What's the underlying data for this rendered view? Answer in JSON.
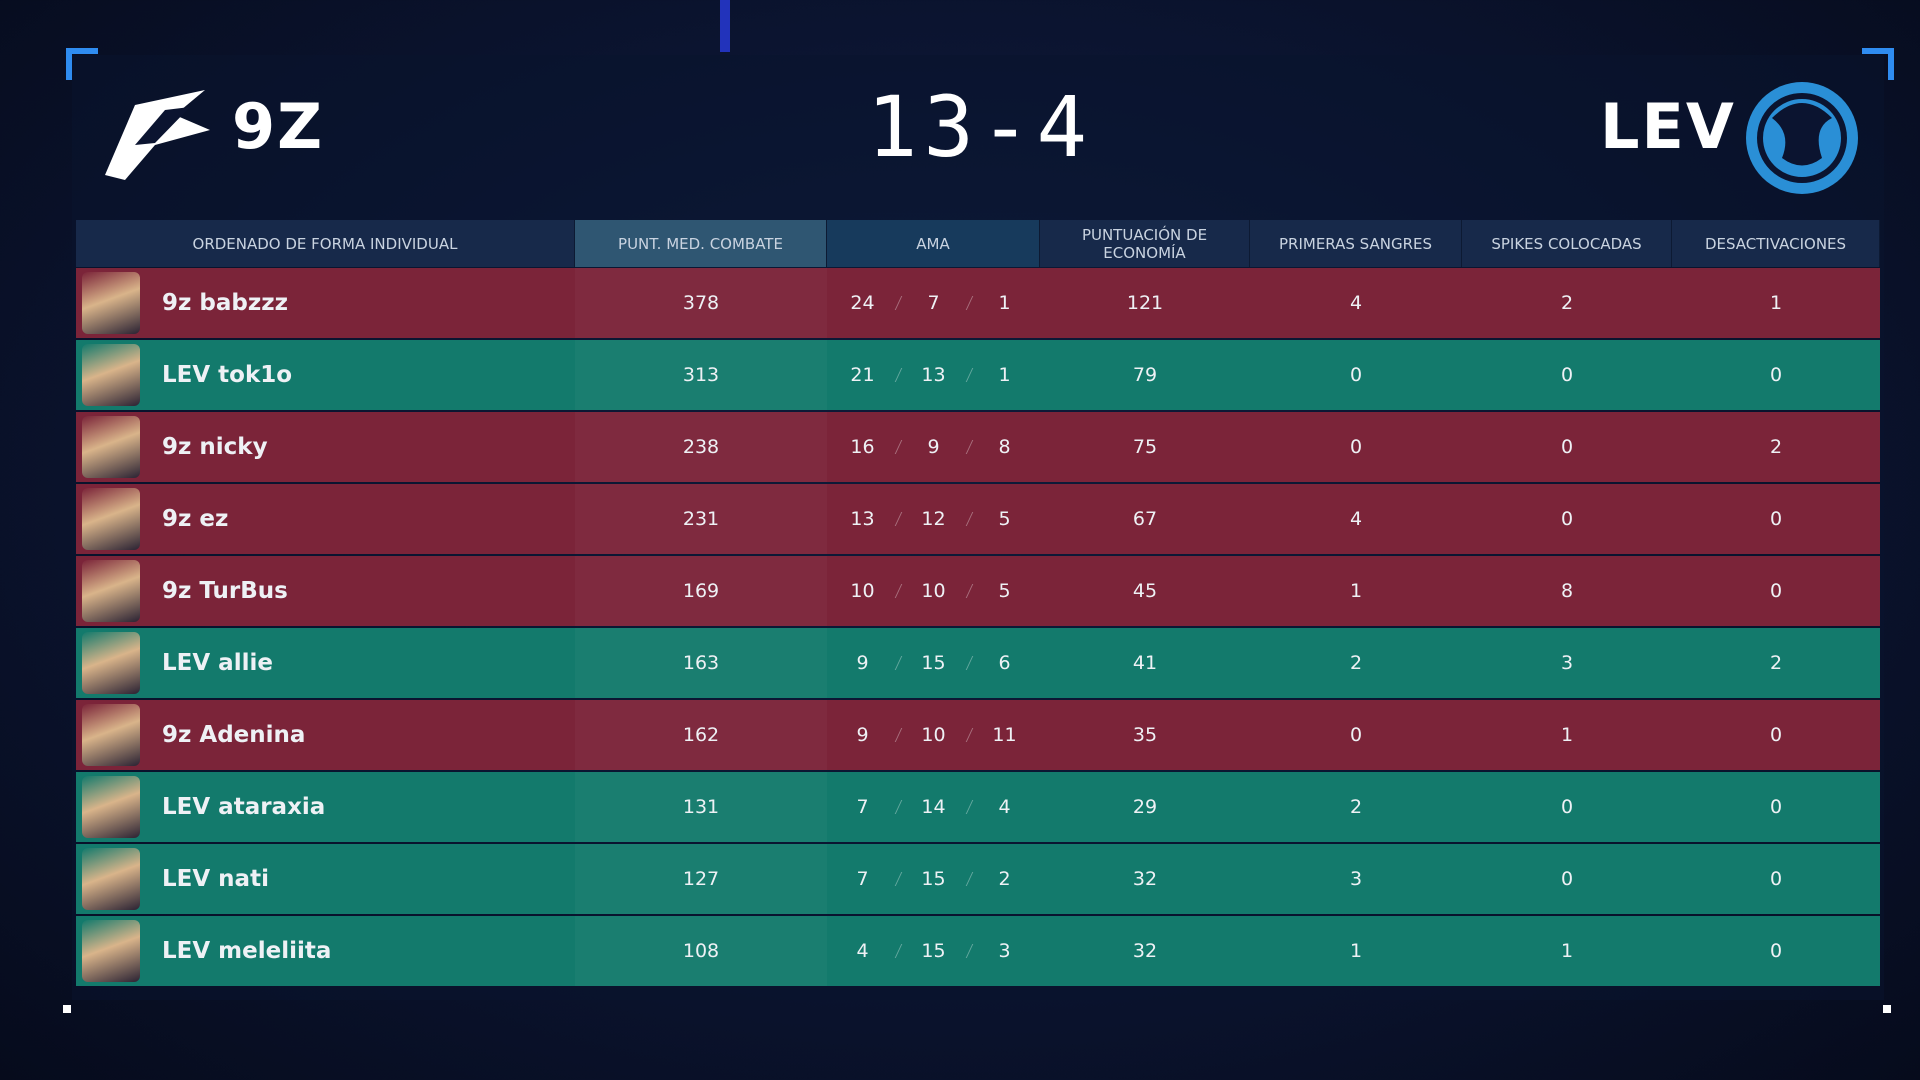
{
  "header": {
    "left_team": "9Z",
    "score": "13-4",
    "right_team": "LEV"
  },
  "table": {
    "columns": [
      "ORDENADO DE FORMA INDIVIDUAL",
      "PUNT. MED. COMBATE",
      "AMA",
      "PUNTUACIÓN DE ECONOMÍA",
      "PRIMERAS SANGRES",
      "SPIKES COLOCADAS",
      "DESACTIVACIONES"
    ],
    "sorted_by": 1,
    "row_colors": {
      "red": "#7b2439",
      "green": "#137a6c"
    },
    "rows": [
      {
        "player": "9z babzzz",
        "color": "red",
        "acs": 378,
        "kills": 24,
        "deaths": 7,
        "assists": 1,
        "econ": 121,
        "first_bloods": 4,
        "plants": 2,
        "defuses": 1
      },
      {
        "player": "LEV tok1o",
        "color": "green",
        "acs": 313,
        "kills": 21,
        "deaths": 13,
        "assists": 1,
        "econ": 79,
        "first_bloods": 0,
        "plants": 0,
        "defuses": 0
      },
      {
        "player": "9z nicky",
        "color": "red",
        "acs": 238,
        "kills": 16,
        "deaths": 9,
        "assists": 8,
        "econ": 75,
        "first_bloods": 0,
        "plants": 0,
        "defuses": 2
      },
      {
        "player": "9z ez",
        "color": "red",
        "acs": 231,
        "kills": 13,
        "deaths": 12,
        "assists": 5,
        "econ": 67,
        "first_bloods": 4,
        "plants": 0,
        "defuses": 0
      },
      {
        "player": "9z TurBus",
        "color": "red",
        "acs": 169,
        "kills": 10,
        "deaths": 10,
        "assists": 5,
        "econ": 45,
        "first_bloods": 1,
        "plants": 8,
        "defuses": 0
      },
      {
        "player": "LEV allie",
        "color": "green",
        "acs": 163,
        "kills": 9,
        "deaths": 15,
        "assists": 6,
        "econ": 41,
        "first_bloods": 2,
        "plants": 3,
        "defuses": 2
      },
      {
        "player": "9z Adenina",
        "color": "red",
        "acs": 162,
        "kills": 9,
        "deaths": 10,
        "assists": 11,
        "econ": 35,
        "first_bloods": 0,
        "plants": 1,
        "defuses": 0
      },
      {
        "player": "LEV ataraxia",
        "color": "green",
        "acs": 131,
        "kills": 7,
        "deaths": 14,
        "assists": 4,
        "econ": 29,
        "first_bloods": 2,
        "plants": 0,
        "defuses": 0
      },
      {
        "player": "LEV nati",
        "color": "green",
        "acs": 127,
        "kills": 7,
        "deaths": 15,
        "assists": 2,
        "econ": 32,
        "first_bloods": 3,
        "plants": 0,
        "defuses": 0
      },
      {
        "player": "LEV meleliita",
        "color": "green",
        "acs": 108,
        "kills": 4,
        "deaths": 15,
        "assists": 3,
        "econ": 32,
        "first_bloods": 1,
        "plants": 1,
        "defuses": 0
      }
    ]
  }
}
